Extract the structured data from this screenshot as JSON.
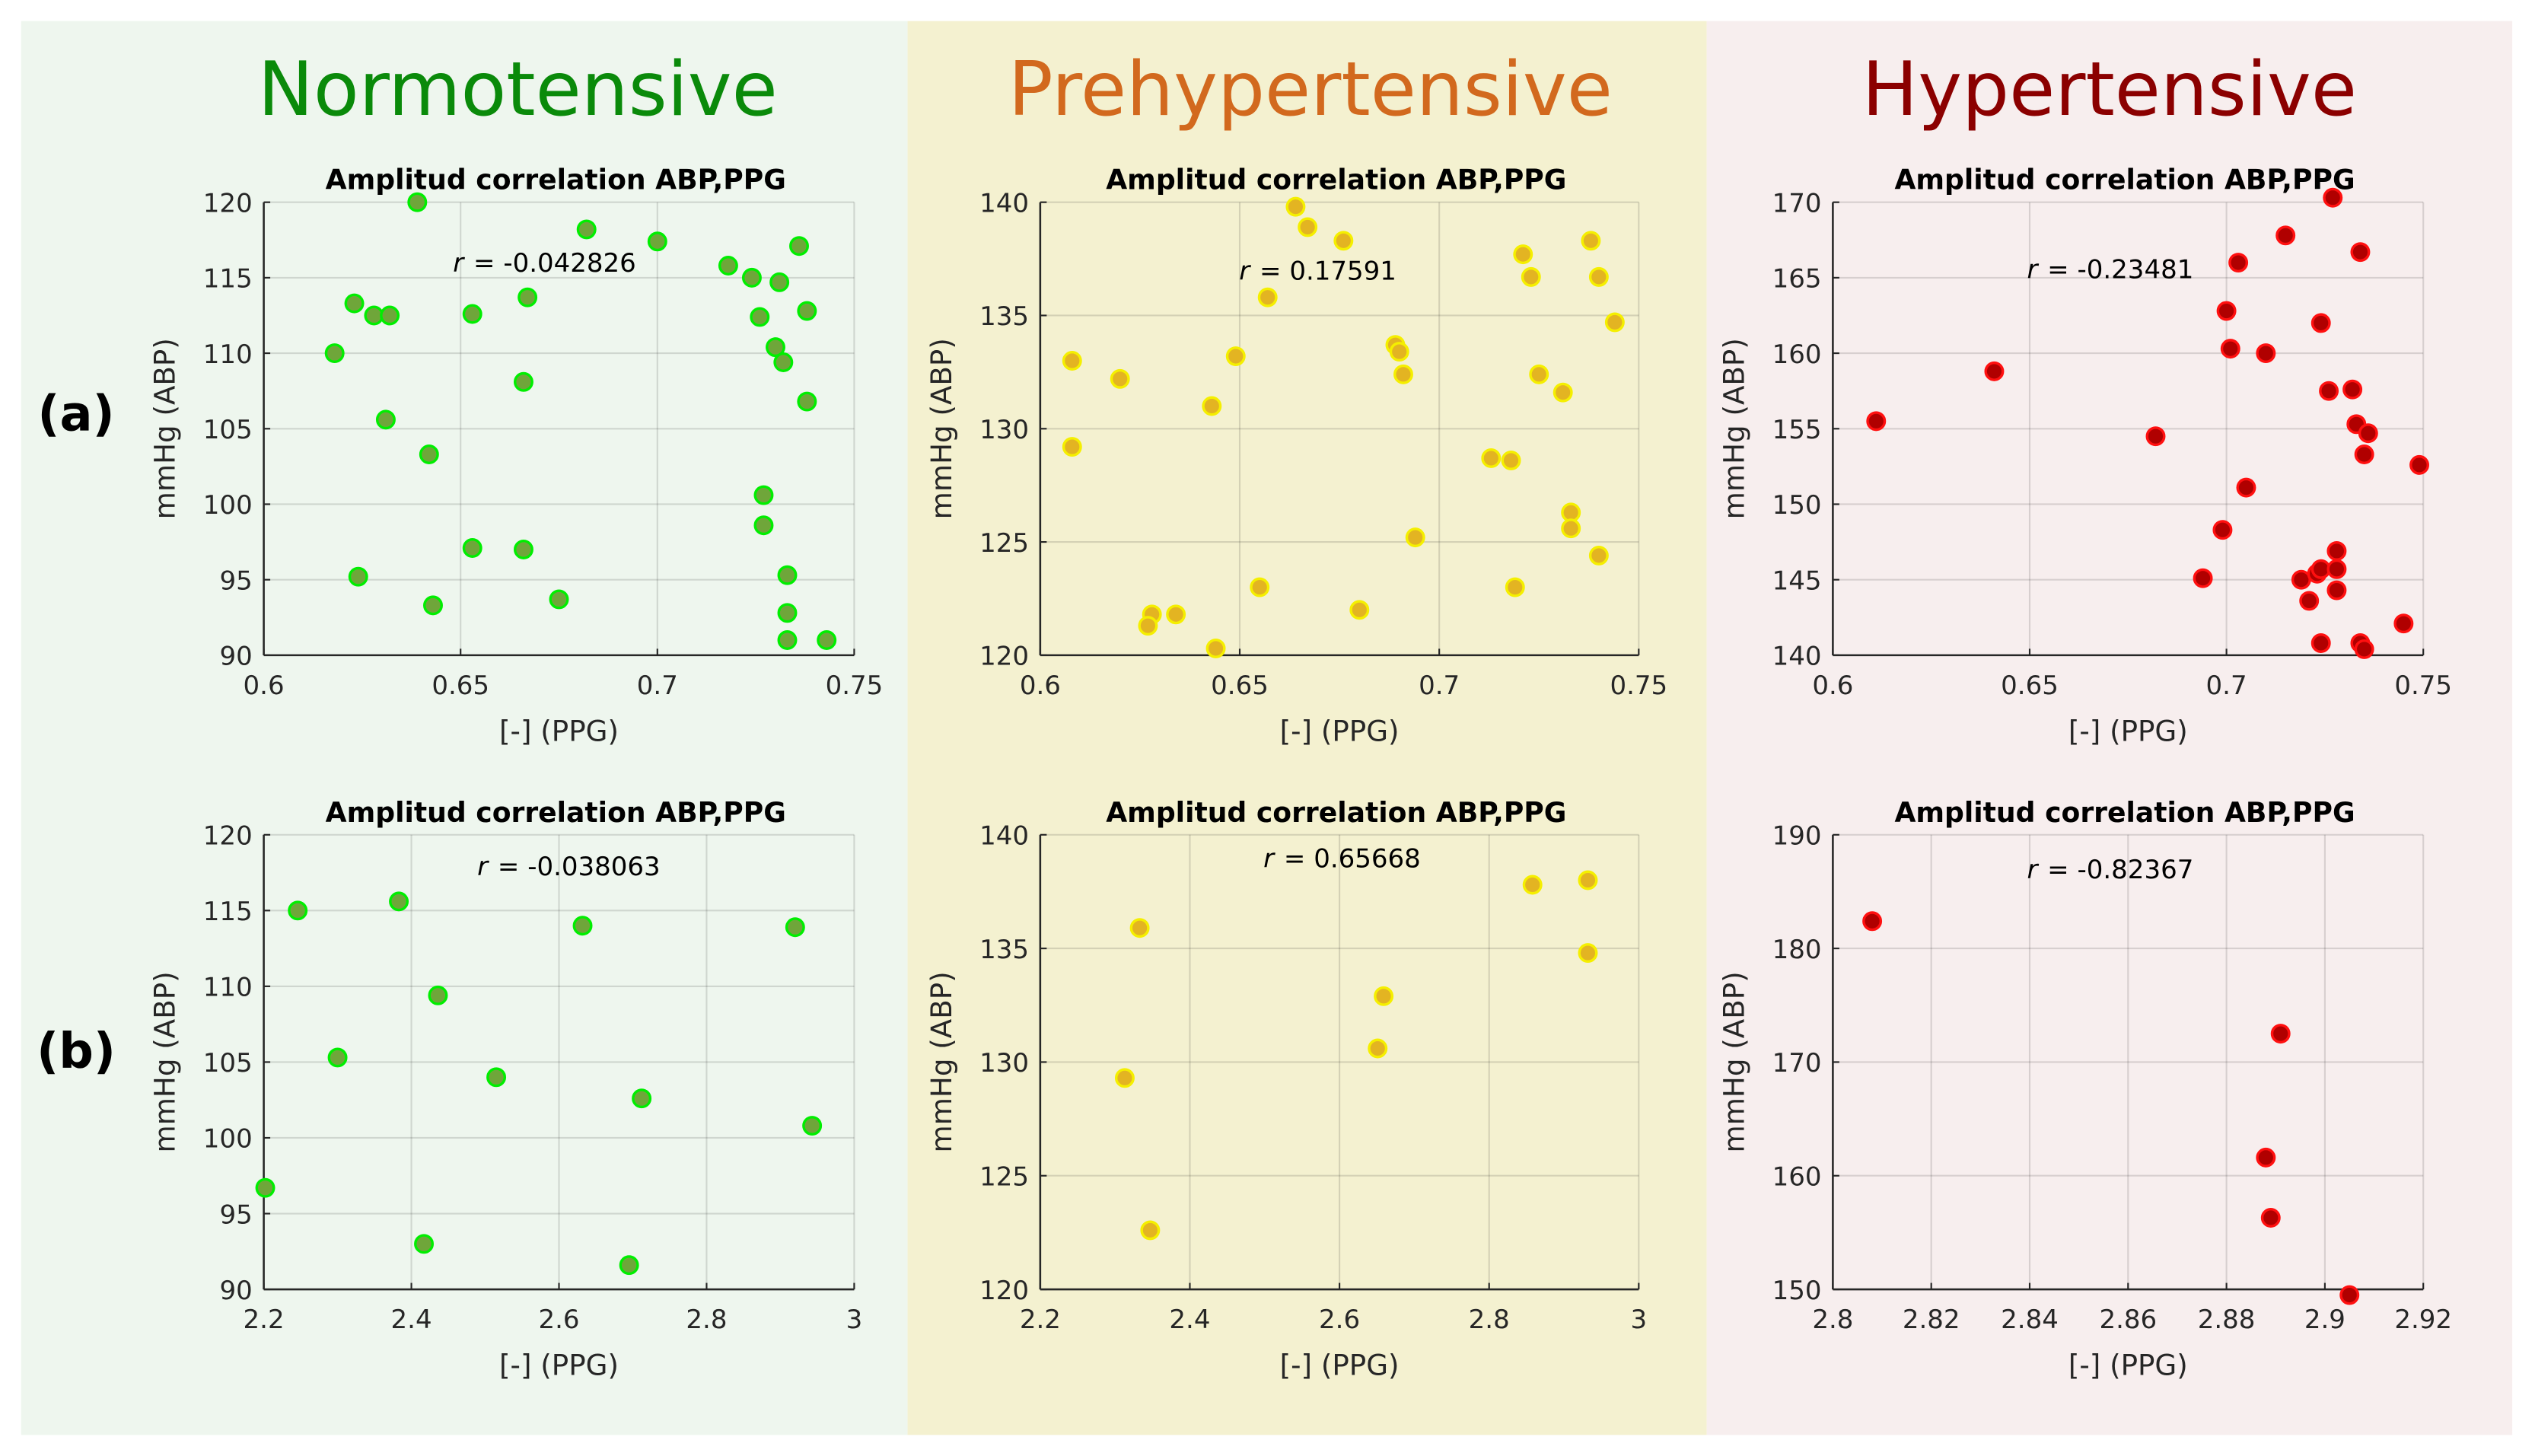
{
  "columns": [
    {
      "title": "Normotensive",
      "title_color": "#0a8a0a",
      "bg": "#eef6ee",
      "face": "#6fa63a",
      "edge": "#00ee00"
    },
    {
      "title": "Prehypertensive",
      "title_color": "#d2691e",
      "bg": "#f4f1d0",
      "face": "#e3b422",
      "edge": "#f5ef00"
    },
    {
      "title": "Hypertensive",
      "title_color": "#8b0000",
      "bg": "#f7eeee",
      "face": "#b00000",
      "edge": "#ff1010"
    }
  ],
  "rows": [
    {
      "label": "(a)"
    },
    {
      "label": "(b)"
    }
  ],
  "chart_data": [
    {
      "type": "scatter",
      "row": 0,
      "col": 0,
      "title": "Amplitud correlation ABP,PPG",
      "xlabel": "[-] (PPG)",
      "ylabel": "mmHg (ABP)",
      "r_label": "r",
      "r_value": "= -0.042826",
      "xlim": [
        0.6,
        0.75
      ],
      "ylim": [
        90,
        120
      ],
      "xticks": [
        0.6,
        0.65,
        0.7,
        0.75
      ],
      "xtick_labels": [
        "0.6",
        "0.65",
        "0.7",
        "0.75"
      ],
      "yticks": [
        90,
        95,
        100,
        105,
        110,
        115,
        120
      ],
      "ytick_labels": [
        "90",
        "95",
        "100",
        "105",
        "110",
        "115",
        "120"
      ],
      "grid": true,
      "points": [
        [
          0.639,
          120
        ],
        [
          0.682,
          118.2
        ],
        [
          0.7,
          117.4
        ],
        [
          0.736,
          117.1
        ],
        [
          0.718,
          115.8
        ],
        [
          0.724,
          115
        ],
        [
          0.731,
          114.7
        ],
        [
          0.623,
          113.3
        ],
        [
          0.628,
          112.5
        ],
        [
          0.632,
          112.5
        ],
        [
          0.653,
          112.6
        ],
        [
          0.667,
          113.7
        ],
        [
          0.726,
          112.4
        ],
        [
          0.738,
          112.8
        ],
        [
          0.618,
          110
        ],
        [
          0.73,
          110.4
        ],
        [
          0.732,
          109.4
        ],
        [
          0.666,
          108.1
        ],
        [
          0.631,
          105.6
        ],
        [
          0.738,
          106.8
        ],
        [
          0.642,
          103.3
        ],
        [
          0.727,
          100.6
        ],
        [
          0.727,
          98.6
        ],
        [
          0.653,
          97.1
        ],
        [
          0.666,
          97
        ],
        [
          0.624,
          95.2
        ],
        [
          0.733,
          95.3
        ],
        [
          0.643,
          93.3
        ],
        [
          0.675,
          93.7
        ],
        [
          0.733,
          92.8
        ],
        [
          0.733,
          91
        ],
        [
          0.743,
          91
        ]
      ]
    },
    {
      "type": "scatter",
      "row": 0,
      "col": 1,
      "title": "Amplitud correlation ABP,PPG",
      "xlabel": "[-] (PPG)",
      "ylabel": "mmHg (ABP)",
      "r_label": "r",
      "r_value": "= 0.17591",
      "xlim": [
        0.6,
        0.75
      ],
      "ylim": [
        120,
        140
      ],
      "xticks": [
        0.6,
        0.65,
        0.7,
        0.75
      ],
      "xtick_labels": [
        "0.6",
        "0.65",
        "0.7",
        "0.75"
      ],
      "yticks": [
        120,
        125,
        130,
        135,
        140
      ],
      "ytick_labels": [
        "120",
        "125",
        "130",
        "135",
        "140"
      ],
      "grid": true,
      "points": [
        [
          0.664,
          139.8
        ],
        [
          0.667,
          138.9
        ],
        [
          0.676,
          138.3
        ],
        [
          0.738,
          138.3
        ],
        [
          0.721,
          137.7
        ],
        [
          0.723,
          136.7
        ],
        [
          0.74,
          136.7
        ],
        [
          0.657,
          135.8
        ],
        [
          0.608,
          133
        ],
        [
          0.62,
          132.2
        ],
        [
          0.649,
          133.2
        ],
        [
          0.689,
          133.7
        ],
        [
          0.69,
          133.4
        ],
        [
          0.691,
          132.4
        ],
        [
          0.725,
          132.4
        ],
        [
          0.731,
          131.6
        ],
        [
          0.744,
          134.7
        ],
        [
          0.643,
          131
        ],
        [
          0.608,
          129.2
        ],
        [
          0.713,
          128.7
        ],
        [
          0.718,
          128.6
        ],
        [
          0.733,
          126.3
        ],
        [
          0.733,
          125.6
        ],
        [
          0.694,
          125.2
        ],
        [
          0.74,
          124.4
        ],
        [
          0.655,
          123
        ],
        [
          0.719,
          123
        ],
        [
          0.68,
          122
        ],
        [
          0.628,
          121.8
        ],
        [
          0.634,
          121.8
        ],
        [
          0.627,
          121.3
        ],
        [
          0.644,
          120.3
        ]
      ]
    },
    {
      "type": "scatter",
      "row": 0,
      "col": 2,
      "title": "Amplitud correlation ABP,PPG",
      "xlabel": "[-] (PPG)",
      "ylabel": "mmHg (ABP)",
      "r_label": "r",
      "r_value": "= -0.23481",
      "xlim": [
        0.6,
        0.75
      ],
      "ylim": [
        140,
        170
      ],
      "xticks": [
        0.6,
        0.65,
        0.7,
        0.75
      ],
      "xtick_labels": [
        "0.6",
        "0.65",
        "0.7",
        "0.75"
      ],
      "yticks": [
        140,
        145,
        150,
        155,
        160,
        165,
        170
      ],
      "ytick_labels": [
        "140",
        "145",
        "150",
        "155",
        "160",
        "165",
        "170"
      ],
      "grid": true,
      "points": [
        [
          0.727,
          170.3
        ],
        [
          0.715,
          167.8
        ],
        [
          0.734,
          166.7
        ],
        [
          0.703,
          166
        ],
        [
          0.7,
          162.8
        ],
        [
          0.724,
          162
        ],
        [
          0.701,
          160.3
        ],
        [
          0.71,
          160
        ],
        [
          0.641,
          158.8
        ],
        [
          0.611,
          155.5
        ],
        [
          0.726,
          157.5
        ],
        [
          0.732,
          157.6
        ],
        [
          0.733,
          155.3
        ],
        [
          0.736,
          154.7
        ],
        [
          0.682,
          154.5
        ],
        [
          0.735,
          153.3
        ],
        [
          0.749,
          152.6
        ],
        [
          0.705,
          151.1
        ],
        [
          0.699,
          148.3
        ],
        [
          0.728,
          146.9
        ],
        [
          0.694,
          145.1
        ],
        [
          0.719,
          145
        ],
        [
          0.723,
          145.4
        ],
        [
          0.724,
          145.7
        ],
        [
          0.728,
          145.7
        ],
        [
          0.728,
          144.3
        ],
        [
          0.721,
          143.6
        ],
        [
          0.745,
          142.1
        ],
        [
          0.724,
          140.8
        ],
        [
          0.734,
          140.8
        ],
        [
          0.735,
          140.4
        ]
      ]
    },
    {
      "type": "scatter",
      "row": 1,
      "col": 0,
      "title": "Amplitud correlation ABP,PPG",
      "xlabel": "[-] (PPG)",
      "ylabel": "mmHg (ABP)",
      "r_label": "r",
      "r_value": "= -0.038063",
      "xlim": [
        2.2,
        3
      ],
      "ylim": [
        90,
        120
      ],
      "xticks": [
        2.2,
        2.4,
        2.6,
        2.8,
        3
      ],
      "xtick_labels": [
        "2.2",
        "2.4",
        "2.6",
        "2.8",
        "3"
      ],
      "yticks": [
        90,
        95,
        100,
        105,
        110,
        115,
        120
      ],
      "ytick_labels": [
        "90",
        "95",
        "100",
        "105",
        "110",
        "115",
        "120"
      ],
      "grid": true,
      "points": [
        [
          2.246,
          115
        ],
        [
          2.383,
          115.6
        ],
        [
          2.632,
          114
        ],
        [
          2.92,
          113.9
        ],
        [
          2.436,
          109.4
        ],
        [
          2.3,
          105.3
        ],
        [
          2.515,
          104
        ],
        [
          2.712,
          102.6
        ],
        [
          2.943,
          100.8
        ],
        [
          2.202,
          96.7
        ],
        [
          2.417,
          93
        ],
        [
          2.695,
          91.6
        ]
      ]
    },
    {
      "type": "scatter",
      "row": 1,
      "col": 1,
      "title": "Amplitud correlation ABP,PPG",
      "xlabel": "[-] (PPG)",
      "ylabel": "mmHg (ABP)",
      "r_label": "r",
      "r_value": "= 0.65668",
      "xlim": [
        2.2,
        3
      ],
      "ylim": [
        120,
        140
      ],
      "xticks": [
        2.2,
        2.4,
        2.6,
        2.8,
        3
      ],
      "xtick_labels": [
        "2.2",
        "2.4",
        "2.6",
        "2.8",
        "3"
      ],
      "yticks": [
        120,
        125,
        130,
        135,
        140
      ],
      "ytick_labels": [
        "120",
        "125",
        "130",
        "135",
        "140"
      ],
      "grid": true,
      "points": [
        [
          2.333,
          135.9
        ],
        [
          2.313,
          129.3
        ],
        [
          2.347,
          122.6
        ],
        [
          2.659,
          132.9
        ],
        [
          2.651,
          130.6
        ],
        [
          2.858,
          137.8
        ],
        [
          2.932,
          138
        ],
        [
          2.932,
          134.8
        ]
      ]
    },
    {
      "type": "scatter",
      "row": 1,
      "col": 2,
      "title": "Amplitud correlation ABP,PPG",
      "xlabel": "[-] (PPG)",
      "ylabel": "mmHg (ABP)",
      "r_label": "r",
      "r_value": "= -0.82367",
      "xlim": [
        2.8,
        2.92
      ],
      "ylim": [
        150,
        190
      ],
      "xticks": [
        2.8,
        2.82,
        2.84,
        2.86,
        2.88,
        2.9,
        2.92
      ],
      "xtick_labels": [
        "2.8",
        "2.82",
        "2.84",
        "2.86",
        "2.88",
        "2.9",
        "2.92"
      ],
      "yticks": [
        150,
        160,
        170,
        180,
        190
      ],
      "ytick_labels": [
        "150",
        "160",
        "170",
        "180",
        "190"
      ],
      "grid": true,
      "points": [
        [
          2.808,
          182.4
        ],
        [
          2.891,
          172.5
        ],
        [
          2.888,
          161.6
        ],
        [
          2.889,
          156.3
        ],
        [
          2.905,
          149.5
        ]
      ]
    }
  ]
}
